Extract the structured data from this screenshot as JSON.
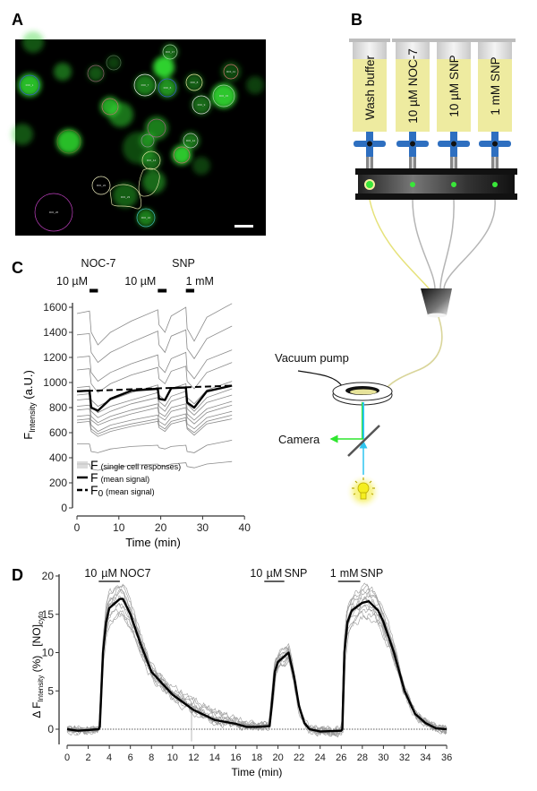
{
  "panels": {
    "a": "A",
    "b": "B",
    "c": "C",
    "d": "D"
  },
  "panel_a": {
    "roi_labels": [
      "ROI_1",
      "ROI_7",
      "ROI_6",
      "ROI_17",
      "ROI_8",
      "ROI_11",
      "ROI_15",
      "ROI_9",
      "ROI_12",
      "ROI_14",
      "ROI_22",
      "ROI_23",
      "ROI_16",
      "ROI_26"
    ],
    "colors": {
      "background": "#000000",
      "fluorescence": "#2fd12f",
      "roi_reference": "#c040c0"
    }
  },
  "panel_b": {
    "syringes": [
      "Wash buffer",
      "10 µM NOC-7",
      "10 µM SNP",
      "1 mM SNP"
    ],
    "vacuum_label": "Vacuum pump",
    "camera_label": "Camera",
    "colors": {
      "solution": "#eeeba0",
      "valve": "#2e6fc0",
      "indicator": "#39e639",
      "excitation": "#2ec4f0",
      "emission": "#2ee62e",
      "lamp": "#f5ee20"
    }
  },
  "chart_data": [
    {
      "panel": "C",
      "type": "line",
      "xlabel": "Time (min)",
      "ylabel": {
        "main": "F",
        "sub": "Intensity",
        "unit": " (a.U.)"
      },
      "xlim": [
        0,
        40
      ],
      "ylim": [
        0,
        1700
      ],
      "x_ticks": [
        "0",
        "10",
        "20",
        "30",
        "40"
      ],
      "y_ticks": [
        "0",
        "200",
        "400",
        "600",
        "800",
        "1000",
        "1200",
        "1400",
        "1600"
      ],
      "grid": false,
      "drug_labels": {
        "noc": "NOC-7",
        "snp": "SNP"
      },
      "applications": [
        {
          "label": "10 µM",
          "start": 3,
          "end": 5
        },
        {
          "label": "10 µM",
          "start": 19.3,
          "end": 21.4
        },
        {
          "label": "1 mM",
          "start": 26,
          "end": 28
        }
      ],
      "legend": {
        "placement": "bottom-left",
        "entries": [
          {
            "symbol": "F",
            "sub": "",
            "desc": "(single cell responses)",
            "style": "thin-gray"
          },
          {
            "symbol": "F",
            "sub": "",
            "desc": "(mean signal)",
            "style": "thick-black"
          },
          {
            "symbol": "F",
            "sub": "0",
            "desc": "(mean signal)",
            "style": "dashed-black"
          }
        ]
      },
      "time": [
        0,
        3,
        3.4,
        5,
        8,
        13,
        19.3,
        19.6,
        21,
        22.5,
        26,
        26.3,
        28,
        31,
        37
      ],
      "single_cells": [
        [
          1550,
          1570,
          1400,
          1300,
          1400,
          1490,
          1580,
          1460,
          1400,
          1530,
          1600,
          1430,
          1330,
          1520,
          1630
        ],
        [
          1380,
          1390,
          1240,
          1160,
          1240,
          1320,
          1410,
          1300,
          1240,
          1370,
          1420,
          1270,
          1190,
          1350,
          1450
        ],
        [
          1200,
          1210,
          1080,
          1010,
          1080,
          1150,
          1220,
          1130,
          1080,
          1190,
          1240,
          1100,
          1030,
          1180,
          1260
        ],
        [
          1100,
          1110,
          990,
          920,
          990,
          1060,
          1120,
          1030,
          990,
          1090,
          1130,
          1010,
          950,
          1080,
          1160
        ],
        [
          960,
          970,
          860,
          810,
          860,
          920,
          980,
          900,
          860,
          950,
          990,
          880,
          830,
          940,
          1010
        ],
        [
          900,
          910,
          810,
          760,
          810,
          860,
          920,
          850,
          810,
          890,
          930,
          830,
          770,
          880,
          950
        ],
        [
          860,
          870,
          770,
          720,
          770,
          830,
          880,
          810,
          770,
          850,
          890,
          790,
          740,
          840,
          900
        ],
        [
          810,
          820,
          730,
          680,
          730,
          780,
          830,
          760,
          730,
          800,
          830,
          750,
          700,
          790,
          850
        ],
        [
          780,
          790,
          700,
          660,
          700,
          750,
          800,
          730,
          700,
          770,
          800,
          720,
          670,
          760,
          820
        ],
        [
          730,
          740,
          660,
          610,
          660,
          700,
          740,
          690,
          660,
          720,
          750,
          670,
          630,
          720,
          770
        ],
        [
          700,
          710,
          630,
          590,
          630,
          670,
          710,
          660,
          630,
          690,
          720,
          640,
          600,
          690,
          740
        ],
        [
          680,
          690,
          610,
          570,
          610,
          650,
          690,
          640,
          610,
          670,
          700,
          630,
          580,
          670,
          710
        ],
        [
          510,
          510,
          450,
          440,
          470,
          490,
          500,
          480,
          470,
          490,
          500,
          450,
          440,
          500,
          540
        ],
        [
          350,
          350,
          310,
          300,
          320,
          340,
          350,
          340,
          330,
          350,
          360,
          330,
          320,
          350,
          370
        ]
      ],
      "mean_signal": [
        930,
        935,
        800,
        775,
        870,
        935,
        950,
        870,
        860,
        955,
        960,
        840,
        800,
        930,
        975
      ],
      "f0_mean": {
        "time": [
          0,
          37
        ],
        "values": [
          930,
          975
        ]
      }
    },
    {
      "panel": "D",
      "type": "line",
      "xlabel": "Time (min)",
      "ylabel": {
        "main": "Δ F",
        "sub": "Intensity",
        "unit": " (%)",
        "main2": "[NO]",
        "sub2": "cyto"
      },
      "xlim": [
        0,
        36
      ],
      "ylim": [
        -2,
        20
      ],
      "x_ticks": [
        "0",
        "2",
        "4",
        "6",
        "8",
        "10",
        "12",
        "14",
        "16",
        "18",
        "20",
        "22",
        "24",
        "26",
        "28",
        "30",
        "32",
        "34",
        "36"
      ],
      "y_ticks": [
        "0",
        "5",
        "10",
        "15",
        "20"
      ],
      "grid": false,
      "zero_line": "dotted",
      "applications": [
        {
          "pre": "10",
          "unit": "µM",
          "post": "NOC7",
          "start": 3,
          "end": 5
        },
        {
          "pre": "10",
          "unit": "µM",
          "post": "SNP",
          "start": 18.7,
          "end": 20.6
        },
        {
          "pre": "1",
          "unit": "mM",
          "post": "SNP",
          "start": 25.7,
          "end": 27.8
        }
      ],
      "mean_signal": {
        "time": [
          0,
          1,
          2,
          3,
          3.1,
          3.4,
          3.7,
          4,
          5,
          5.3,
          6,
          7,
          8,
          10,
          12,
          14,
          16,
          17,
          18,
          19.2,
          19.4,
          19.7,
          20,
          21,
          21.5,
          22,
          22.5,
          23,
          24,
          26,
          26.1,
          26.3,
          26.6,
          27,
          28,
          28.6,
          29.5,
          30,
          31,
          32,
          33,
          34,
          35,
          36
        ],
        "values": [
          0,
          -0.2,
          -0.1,
          0,
          0.3,
          10,
          14,
          15.8,
          17,
          17,
          15,
          11,
          7.5,
          4.5,
          2.5,
          1.2,
          0.7,
          0.3,
          0.3,
          0.4,
          3,
          7.5,
          8.8,
          10,
          7,
          3,
          0.8,
          0,
          -0.3,
          -0.2,
          0,
          10,
          14,
          15.5,
          16.5,
          16.7,
          15.5,
          14,
          10,
          5,
          2,
          0.8,
          0.1,
          0
        ]
      },
      "single_cell_scale": [
        0.88,
        0.92,
        0.95,
        0.97,
        1.0,
        1.02,
        1.04,
        1.06,
        1.08,
        1.1,
        0.9,
        1.12
      ]
    }
  ]
}
